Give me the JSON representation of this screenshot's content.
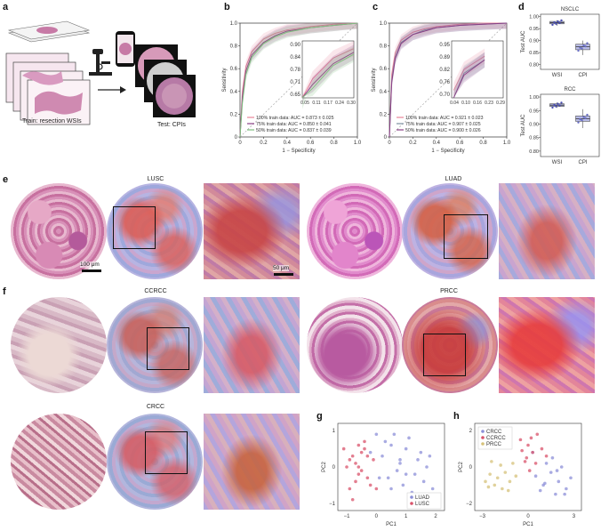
{
  "panels": {
    "a": "a",
    "b": "b",
    "c": "c",
    "d": "d",
    "e": "e",
    "f": "f",
    "g": "g",
    "h": "h"
  },
  "panel_a": {
    "train_label": "Train: resection WSIs",
    "test_label": "Test: CPIs"
  },
  "roc_nsclc": {
    "ylabel": "Sensitivity",
    "xlabel": "1 − Specificity",
    "yticks": [
      "0",
      "0.2",
      "0.4",
      "0.6",
      "0.8",
      "1.0"
    ],
    "xticks": [
      "0",
      "0.2",
      "0.4",
      "0.6",
      "0.8",
      "1.0"
    ],
    "inset_yticks": [
      "0.90",
      "0.84",
      "0.78",
      "0.71",
      "0.65"
    ],
    "inset_xticks": [
      "0.05",
      "0.11",
      "0.17",
      "0.24",
      "0.30"
    ],
    "legend": [
      {
        "label": "100% train data: AUC = 0.873 ± 0.025",
        "color": "#e8849a"
      },
      {
        "label": "75% train data: AUC = 0.850 ± 0.041",
        "color": "#8a3f86"
      },
      {
        "label": "50% train data: AUC = 0.837 ± 0.039",
        "color": "#7fbf7f"
      }
    ]
  },
  "roc_rcc": {
    "ylabel": "Sensitivity",
    "xlabel": "1 − Specificity",
    "yticks": [
      "0",
      "0.2",
      "0.4",
      "0.6",
      "0.8",
      "1.0"
    ],
    "xticks": [
      "0",
      "0.2",
      "0.4",
      "0.6",
      "0.8",
      "1.0"
    ],
    "inset_yticks": [
      "0.95",
      "0.89",
      "0.82",
      "0.76",
      "0.70"
    ],
    "inset_xticks": [
      "0.04",
      "0.10",
      "0.16",
      "0.23",
      "0.29"
    ],
    "legend": [
      {
        "label": "100% train data: AUC = 0.921 ± 0.023",
        "color": "#e8849a"
      },
      {
        "label": "75% train data: AUC = 0.907 ± 0.025",
        "color": "#7a8fa0"
      },
      {
        "label": "50% train data: AUC = 0.900 ± 0.026",
        "color": "#8a3f86"
      }
    ]
  },
  "box_nsclc": {
    "title": "NSCLC",
    "ylabel": "Test AUC",
    "yticks": [
      "0.80",
      "0.85",
      "0.90",
      "0.95",
      "1.00"
    ],
    "categories": [
      "WSI",
      "CPI"
    ]
  },
  "box_rcc": {
    "title": "RCC",
    "ylabel": "Test AUC",
    "yticks": [
      "0.80",
      "0.85",
      "0.90",
      "0.95",
      "1.00"
    ],
    "categories": [
      "WSI",
      "CPI"
    ]
  },
  "panel_e": {
    "lusc_title": "LUSC",
    "luad_title": "LUAD",
    "scale1": "100 μm",
    "scale2": "50 μm"
  },
  "panel_f": {
    "ccrcc_title": "CCRCC",
    "prcc_title": "PRCC",
    "crcc_title": "CRCC"
  },
  "pca_g": {
    "xlabel": "PC1",
    "ylabel": "PC2",
    "xticks": [
      "−1",
      "0",
      "1",
      "2"
    ],
    "yticks": [
      "−1",
      "0",
      "1"
    ],
    "legend": [
      {
        "label": "LUAD",
        "color": "#8c8fd8"
      },
      {
        "label": "LUSC",
        "color": "#d9536b"
      }
    ]
  },
  "pca_h": {
    "xlabel": "PC1",
    "ylabel": "PC2",
    "xticks": [
      "−3",
      "0",
      "3"
    ],
    "yticks": [
      "−2",
      "0",
      "2"
    ],
    "legend": [
      {
        "label": "CRCC",
        "color": "#8c8fd8"
      },
      {
        "label": "CCRCC",
        "color": "#d9536b"
      },
      {
        "label": "PRCC",
        "color": "#d6c27a"
      }
    ]
  },
  "chart_data": [
    {
      "type": "line",
      "name": "NSCLC ROC",
      "x": [
        0,
        0.02,
        0.05,
        0.1,
        0.2,
        0.3,
        0.4,
        0.6,
        0.8,
        1.0
      ],
      "series": [
        {
          "name": "100% train data",
          "values": [
            0,
            0.4,
            0.62,
            0.75,
            0.86,
            0.91,
            0.94,
            0.97,
            0.99,
            1.0
          ]
        },
        {
          "name": "75% train data",
          "values": [
            0,
            0.35,
            0.58,
            0.72,
            0.83,
            0.89,
            0.93,
            0.96,
            0.98,
            1.0
          ]
        },
        {
          "name": "50% train data",
          "values": [
            0,
            0.3,
            0.55,
            0.7,
            0.82,
            0.88,
            0.92,
            0.96,
            0.98,
            1.0
          ]
        }
      ],
      "xlim": [
        0,
        1
      ],
      "ylim": [
        0,
        1
      ]
    },
    {
      "type": "line",
      "name": "RCC ROC",
      "x": [
        0,
        0.02,
        0.05,
        0.1,
        0.2,
        0.3,
        0.4,
        0.6,
        0.8,
        1.0
      ],
      "series": [
        {
          "name": "100% train data",
          "values": [
            0,
            0.55,
            0.74,
            0.85,
            0.92,
            0.95,
            0.97,
            0.99,
            1.0,
            1.0
          ]
        },
        {
          "name": "75% train data",
          "values": [
            0,
            0.5,
            0.7,
            0.83,
            0.9,
            0.94,
            0.96,
            0.98,
            0.99,
            1.0
          ]
        },
        {
          "name": "50% train data",
          "values": [
            0,
            0.48,
            0.69,
            0.82,
            0.9,
            0.93,
            0.96,
            0.98,
            0.99,
            1.0
          ]
        }
      ],
      "xlim": [
        0,
        1
      ],
      "ylim": [
        0,
        1
      ]
    },
    {
      "type": "box",
      "name": "NSCLC Test AUC",
      "categories": [
        "WSI",
        "CPI"
      ],
      "medians": [
        0.975,
        0.875
      ],
      "q1": [
        0.97,
        0.862
      ],
      "q3": [
        0.98,
        0.885
      ],
      "whisker_low": [
        0.962,
        0.84
      ],
      "whisker_high": [
        0.985,
        0.9
      ],
      "ylim": [
        0.78,
        1.01
      ]
    },
    {
      "type": "box",
      "name": "RCC Test AUC",
      "categories": [
        "WSI",
        "CPI"
      ],
      "medians": [
        0.97,
        0.92
      ],
      "q1": [
        0.965,
        0.91
      ],
      "q3": [
        0.975,
        0.93
      ],
      "whisker_low": [
        0.96,
        0.885
      ],
      "whisker_high": [
        0.98,
        0.955
      ],
      "ylim": [
        0.78,
        1.01
      ]
    },
    {
      "type": "scatter",
      "name": "PCA NSCLC",
      "series": [
        {
          "name": "LUAD",
          "x": [
            0.2,
            0.5,
            0.8,
            1.0,
            1.3,
            1.5,
            1.7,
            0.9,
            0.4,
            1.1,
            0.6,
            1.9,
            0.3,
            1.4,
            0.7,
            1.6,
            0.0,
            -0.2,
            1.2,
            0.8,
            1.8,
            0.5,
            1.0,
            0.1
          ],
          "y": [
            0.3,
            0.6,
            0.1,
            0.5,
            -0.2,
            0.4,
            0.0,
            -0.5,
            -0.3,
            0.8,
            0.9,
            -0.6,
            0.7,
            0.2,
            -0.1,
            -0.4,
            0.9,
            0.4,
            -0.7,
            0.2,
            0.3,
            -0.6,
            -0.2,
            -0.3
          ]
        },
        {
          "name": "LUSC",
          "x": [
            -1.0,
            -0.8,
            -0.6,
            -0.4,
            -0.9,
            -0.7,
            -0.5,
            -0.3,
            -0.1,
            -0.8,
            -0.6,
            -1.1,
            -0.2,
            -0.5,
            -0.7,
            -0.9,
            -0.4,
            0.0,
            -0.6,
            -0.3
          ],
          "y": [
            0.0,
            0.3,
            -0.2,
            0.5,
            -0.6,
            0.1,
            0.4,
            -0.3,
            0.2,
            -0.9,
            0.6,
            0.5,
            -0.5,
            -0.1,
            -0.4,
            0.2,
            0.7,
            -0.6,
            0.0,
            0.3
          ]
        }
      ]
    },
    {
      "type": "scatter",
      "name": "PCA RCC",
      "series": [
        {
          "name": "CRCC",
          "x": [
            0.5,
            1.0,
            1.5,
            2.0,
            2.5,
            1.2,
            1.8,
            2.2,
            0.8,
            1.6,
            2.8,
            1.1,
            0.3,
            2.4,
            1.9
          ],
          "y": [
            -0.5,
            -1.0,
            -0.3,
            -0.8,
            -1.2,
            0.2,
            -1.5,
            0.0,
            -1.3,
            0.5,
            -0.6,
            -0.9,
            0.8,
            -1.5,
            -0.2
          ]
        },
        {
          "name": "CCRCC",
          "x": [
            -0.5,
            0.0,
            0.3,
            0.6,
            -0.2,
            0.9,
            0.1,
            -0.4,
            0.5,
            0.2,
            1.2,
            -0.1
          ],
          "y": [
            1.5,
            1.2,
            0.8,
            1.8,
            0.3,
            1.0,
            -0.2,
            0.9,
            0.2,
            1.6,
            0.6,
            0.5
          ]
        },
        {
          "name": "PRCC",
          "x": [
            -2.8,
            -2.5,
            -2.2,
            -2.0,
            -1.7,
            -1.5,
            -1.2,
            -1.0,
            -2.4,
            -1.8,
            -1.3,
            -2.6,
            -0.8
          ],
          "y": [
            -0.8,
            -0.4,
            -1.0,
            -0.6,
            -1.2,
            -0.3,
            -0.8,
            0.2,
            0.3,
            0.1,
            -1.3,
            -1.1,
            -0.5
          ]
        }
      ]
    }
  ]
}
